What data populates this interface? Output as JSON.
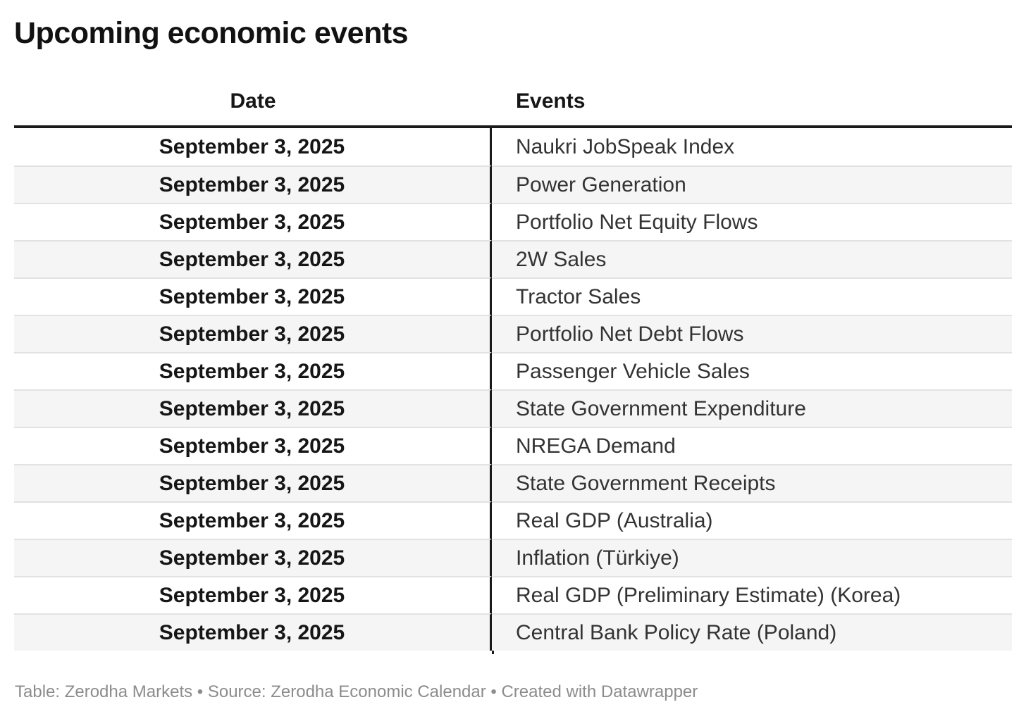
{
  "chart_data": {
    "type": "table",
    "title": "Upcoming economic events",
    "columns": [
      "Date",
      "Events"
    ],
    "rows": [
      {
        "date": "September 3, 2025",
        "event": "Naukri JobSpeak Index"
      },
      {
        "date": "September 3, 2025",
        "event": "Power Generation"
      },
      {
        "date": "September 3, 2025",
        "event": "Portfolio Net Equity Flows"
      },
      {
        "date": "September 3, 2025",
        "event": "2W Sales"
      },
      {
        "date": "September 3, 2025",
        "event": "Tractor Sales"
      },
      {
        "date": "September 3, 2025",
        "event": "Portfolio Net Debt Flows"
      },
      {
        "date": "September 3, 2025",
        "event": "Passenger Vehicle Sales"
      },
      {
        "date": "September 3, 2025",
        "event": "State Government Expenditure"
      },
      {
        "date": "September 3, 2025",
        "event": "NREGA Demand"
      },
      {
        "date": "September 3, 2025",
        "event": "State Government Receipts"
      },
      {
        "date": "September 3, 2025",
        "event": "Real GDP (Australia)"
      },
      {
        "date": "September 3, 2025",
        "event": "Inflation (Türkiye)"
      },
      {
        "date": "September 3, 2025",
        "event": "Real GDP (Preliminary Estimate) (Korea)"
      },
      {
        "date": "September 3, 2025",
        "event": "Central Bank Policy Rate (Poland)"
      }
    ],
    "layout": {
      "zebra_striping": true,
      "date_column_align": "center",
      "events_column_align": "left"
    }
  },
  "footer": {
    "attribution": "Table: Zerodha Markets • Source: Zerodha Economic Calendar • Created with Datawrapper"
  },
  "colors": {
    "accent_line": "#1a1a1a",
    "zebra": "#f5f5f5",
    "row_border": "#e2e2e2",
    "footer_text": "#8c8c8c",
    "title_text": "#121212",
    "date_text": "#161616",
    "event_text": "#333333"
  }
}
